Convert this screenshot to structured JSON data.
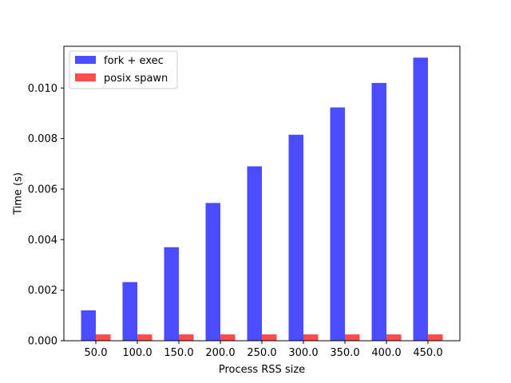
{
  "chart_data": {
    "type": "bar",
    "title": "",
    "xlabel": "Process RSS size",
    "ylabel": "Time (s)",
    "categories": [
      "50.0",
      "100.0",
      "150.0",
      "200.0",
      "250.0",
      "300.0",
      "350.0",
      "400.0",
      "450.0"
    ],
    "series": [
      {
        "name": "fork + exec",
        "color": "#4b4bff",
        "values": [
          0.0012,
          0.00232,
          0.0037,
          0.00545,
          0.0069,
          0.00815,
          0.00923,
          0.0102,
          0.0112
        ]
      },
      {
        "name": "posix spawn",
        "color": "#ff4b4b",
        "values": [
          0.00025,
          0.00025,
          0.00025,
          0.00025,
          0.00025,
          0.00025,
          0.00025,
          0.00025,
          0.00025
        ]
      }
    ],
    "ylim": [
      0,
      0.01165
    ],
    "yticks": [
      "0.000",
      "0.002",
      "0.004",
      "0.006",
      "0.008",
      "0.010"
    ],
    "ytick_values": [
      0,
      0.002,
      0.004,
      0.006,
      0.008,
      0.01
    ],
    "grid": false,
    "legend_position": "top-left"
  }
}
